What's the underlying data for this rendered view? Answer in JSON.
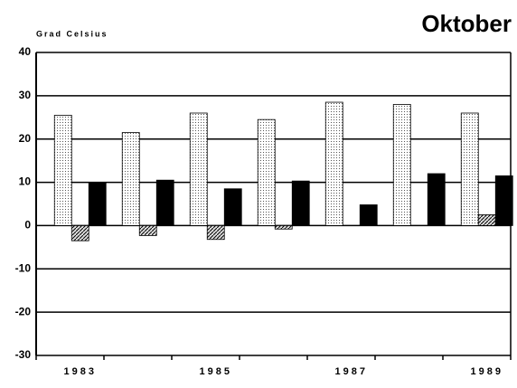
{
  "chart_data": {
    "type": "bar",
    "title": "Oktober",
    "y_label": "Grad Celsius",
    "categories": [
      "1983",
      null,
      "1985",
      null,
      "1987",
      null,
      "1989"
    ],
    "series": [
      {
        "color": "#d9d9d9",
        "values": [
          25.5,
          21.5,
          26,
          24.5,
          28.5,
          28,
          26
        ]
      },
      {
        "color": "#9a9a9a",
        "values": [
          -3.5,
          -2.3,
          -3.2,
          -0.8,
          0,
          0,
          2.5
        ]
      },
      {
        "color": "#000000",
        "values": [
          10,
          10.5,
          8.5,
          10.3,
          4.8,
          12,
          11.5
        ]
      }
    ],
    "ylim": [
      -30,
      40
    ],
    "yticks": [
      -30,
      -20,
      -10,
      0,
      10,
      20,
      30,
      40
    ],
    "grid": true
  }
}
